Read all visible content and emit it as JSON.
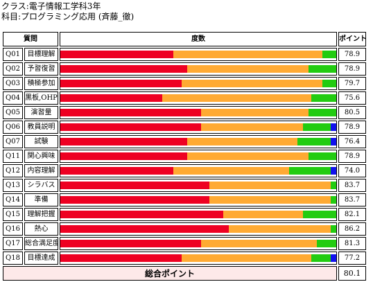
{
  "header": {
    "class_line": "クラス:電子情報工学科3年",
    "subject_line": "科目:プログラミング応用 (斉藤_徹)"
  },
  "table": {
    "headers": {
      "question": "質問",
      "degree": "度数",
      "points": "ポイント"
    },
    "colors": [
      "#ee0022",
      "#ffaa33",
      "#22cc11",
      "#1111ee"
    ],
    "rows": [
      {
        "id": "Q01",
        "name": "目標理解",
        "segments": [
          0.41,
          0.54,
          0.05,
          0.0
        ],
        "points": "78.9"
      },
      {
        "id": "Q02",
        "name": "予習復習",
        "segments": [
          0.46,
          0.44,
          0.1,
          0.0
        ],
        "points": "78.9"
      },
      {
        "id": "Q03",
        "name": "積極参加",
        "segments": [
          0.44,
          0.51,
          0.05,
          0.0
        ],
        "points": "79.7"
      },
      {
        "id": "Q04",
        "name": "黒板,OHP",
        "segments": [
          0.37,
          0.54,
          0.09,
          0.0
        ],
        "points": "75.6"
      },
      {
        "id": "Q05",
        "name": "演習量",
        "segments": [
          0.51,
          0.39,
          0.1,
          0.0
        ],
        "points": "80.5"
      },
      {
        "id": "Q06",
        "name": "教員説明",
        "segments": [
          0.51,
          0.37,
          0.1,
          0.02
        ],
        "points": "78.9"
      },
      {
        "id": "Q07",
        "name": "試験",
        "segments": [
          0.46,
          0.4,
          0.12,
          0.02
        ],
        "points": "76.4"
      },
      {
        "id": "Q11",
        "name": "関心興味",
        "segments": [
          0.46,
          0.44,
          0.1,
          0.0
        ],
        "points": "78.9"
      },
      {
        "id": "Q12",
        "name": "内容理解",
        "segments": [
          0.41,
          0.42,
          0.15,
          0.02
        ],
        "points": "74.0"
      },
      {
        "id": "Q13",
        "name": "シラバス",
        "segments": [
          0.54,
          0.44,
          0.02,
          0.0
        ],
        "points": "83.7"
      },
      {
        "id": "Q14",
        "name": "準備",
        "segments": [
          0.54,
          0.44,
          0.02,
          0.0
        ],
        "points": "83.7"
      },
      {
        "id": "Q15",
        "name": "理解把握",
        "segments": [
          0.59,
          0.29,
          0.12,
          0.0
        ],
        "points": "82.1"
      },
      {
        "id": "Q16",
        "name": "熱心",
        "segments": [
          0.61,
          0.37,
          0.02,
          0.0
        ],
        "points": "86.2"
      },
      {
        "id": "Q17",
        "name": "総合満足度",
        "segments": [
          0.51,
          0.42,
          0.07,
          0.0
        ],
        "points": "81.3"
      },
      {
        "id": "Q18",
        "name": "目標達成",
        "segments": [
          0.44,
          0.47,
          0.07,
          0.02
        ],
        "points": "77.2"
      }
    ],
    "total": {
      "label": "総合ポイント",
      "points": "80.1"
    }
  }
}
